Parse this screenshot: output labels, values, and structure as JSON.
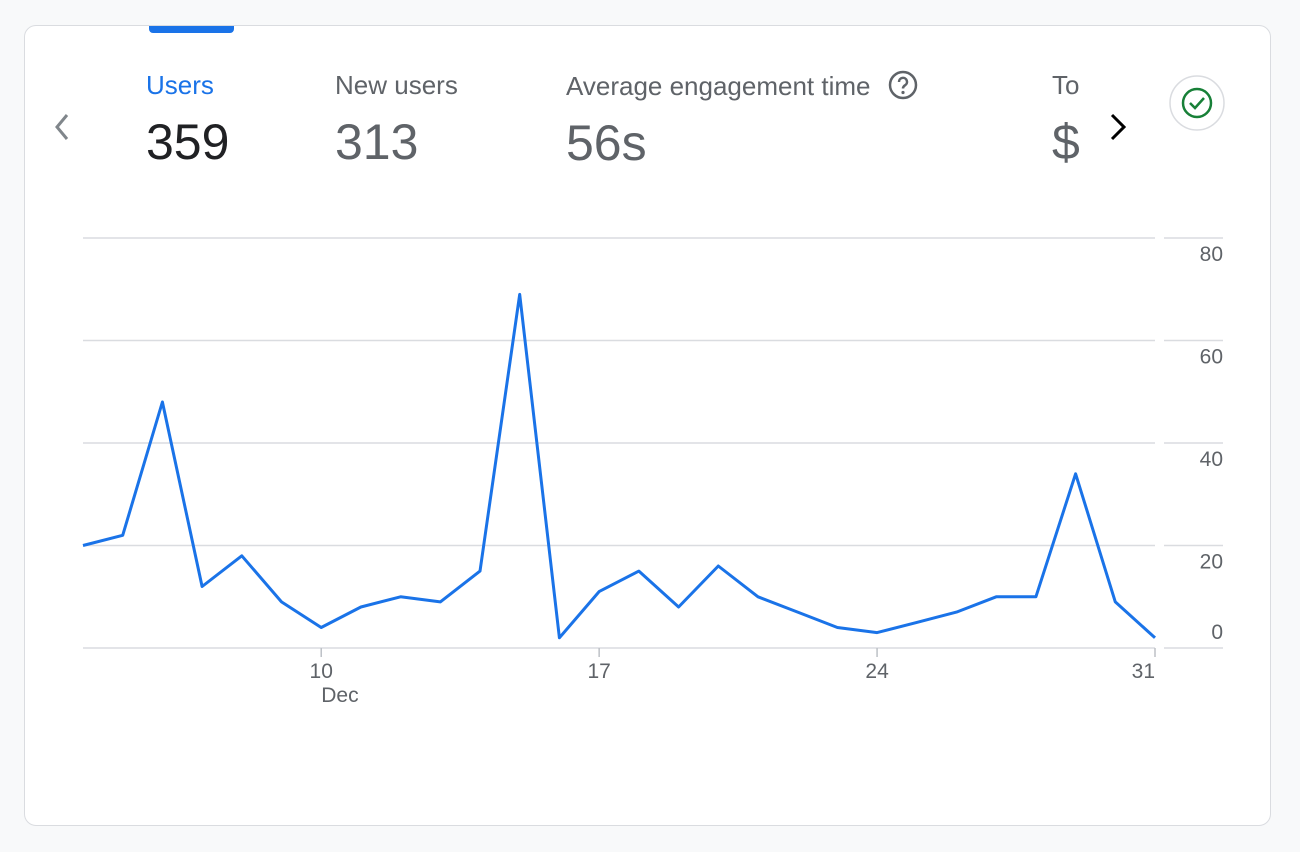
{
  "tabs": [
    {
      "label": "Users",
      "value": "359"
    },
    {
      "label": "New users",
      "value": "313"
    },
    {
      "label": "Average engagement time",
      "value": "56s"
    },
    {
      "label": "To",
      "value": "$"
    }
  ],
  "chart_data": {
    "type": "line",
    "x": [
      4,
      5,
      6,
      7,
      8,
      9,
      10,
      11,
      12,
      13,
      14,
      15,
      16,
      17,
      18,
      19,
      20,
      21,
      22,
      23,
      24,
      25,
      26,
      27,
      28,
      29,
      30,
      31
    ],
    "values": [
      20,
      22,
      48,
      12,
      18,
      9,
      4,
      8,
      10,
      9,
      15,
      69,
      2,
      11,
      15,
      8,
      16,
      10,
      7,
      4,
      3,
      5,
      7,
      10,
      10,
      34,
      9,
      2
    ],
    "color": "#1a73e8",
    "xlim": [
      4,
      31
    ],
    "xticks": [
      10,
      17,
      24,
      31
    ],
    "x_month_label": "Dec",
    "ylim": [
      0,
      80
    ],
    "yticks": [
      0,
      20,
      40,
      60,
      80
    ],
    "grid": true
  }
}
